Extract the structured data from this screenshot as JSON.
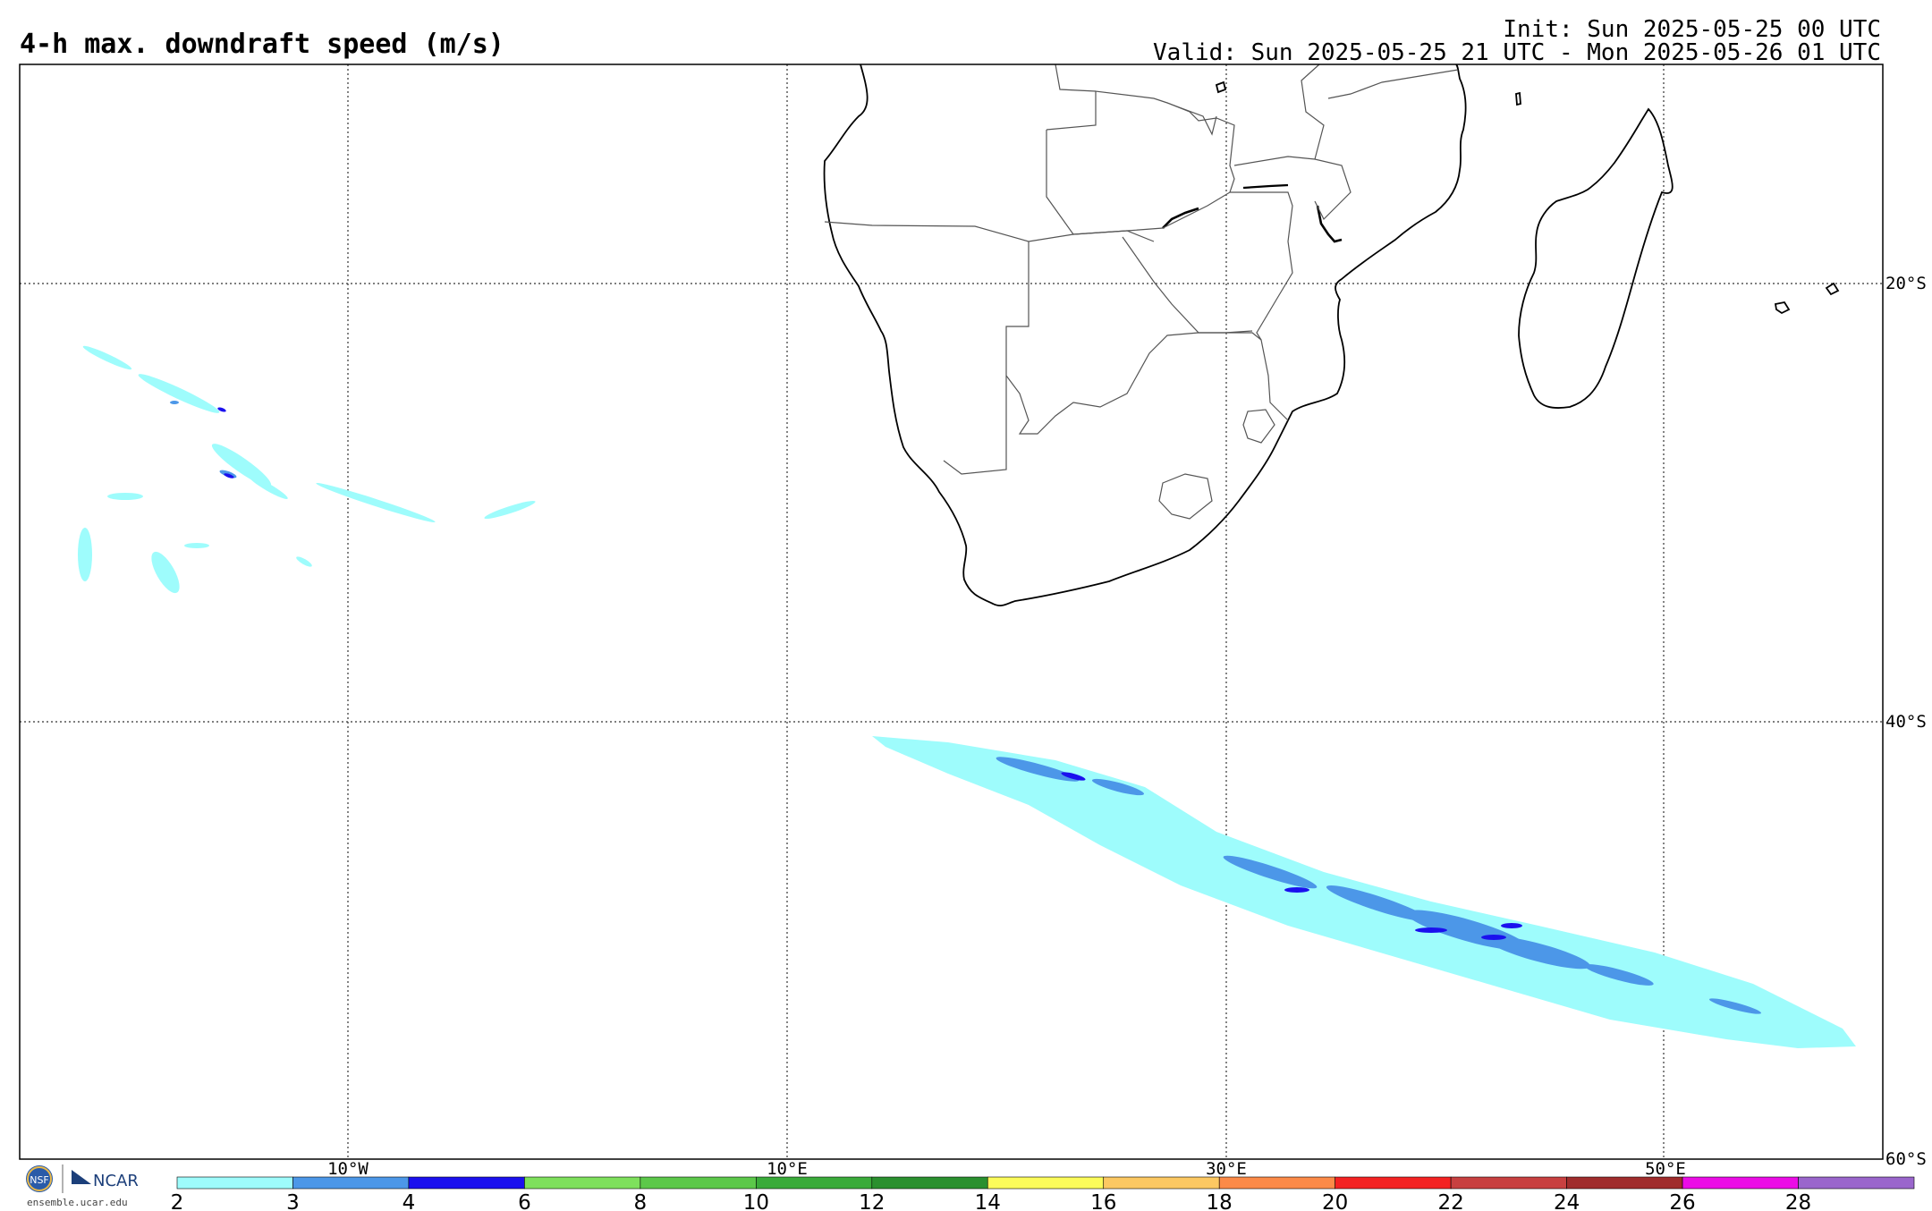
{
  "title": "4-h max. downdraft speed (m/s)",
  "init_line": "Init: Sun 2025-05-25 00 UTC",
  "valid_line": "Valid: Sun 2025-05-25 21 UTC - Mon 2025-05-26 01 UTC",
  "lon_labels": [
    {
      "text": "10°W",
      "lon": -10
    },
    {
      "text": "10°E",
      "lon": 10
    },
    {
      "text": "30°E",
      "lon": 30
    },
    {
      "text": "50°E",
      "lon": 50
    }
  ],
  "lat_labels": [
    {
      "text": "20°S",
      "lat": -20
    },
    {
      "text": "40°S",
      "lat": -40
    },
    {
      "text": "60°S",
      "lat": -60
    }
  ],
  "colorbar": {
    "ticks": [
      "2",
      "3",
      "4",
      "6",
      "8",
      "10",
      "12",
      "14",
      "16",
      "18",
      "20",
      "22",
      "24",
      "26",
      "28"
    ],
    "colors": [
      "#9efcfc",
      "#4c97e8",
      "#1b10ee",
      "#7ee05c",
      "#5cc84a",
      "#3aab3a",
      "#2a902f",
      "#fcfc5a",
      "#fcc862",
      "#fc8a48",
      "#f42222",
      "#c84040",
      "#a02c2c",
      "#ec0ce6",
      "#9a66cc"
    ]
  },
  "logo": {
    "org_text": "NCAR",
    "site_text": "ensemble.ucar.edu",
    "badge_text": "NSF"
  },
  "icons": {
    "nsf": "nsf-logo-icon",
    "ncar": "ncar-logo-icon"
  },
  "colors": {
    "coast": "#000000",
    "borders": "#555555",
    "grid": "#333333"
  }
}
